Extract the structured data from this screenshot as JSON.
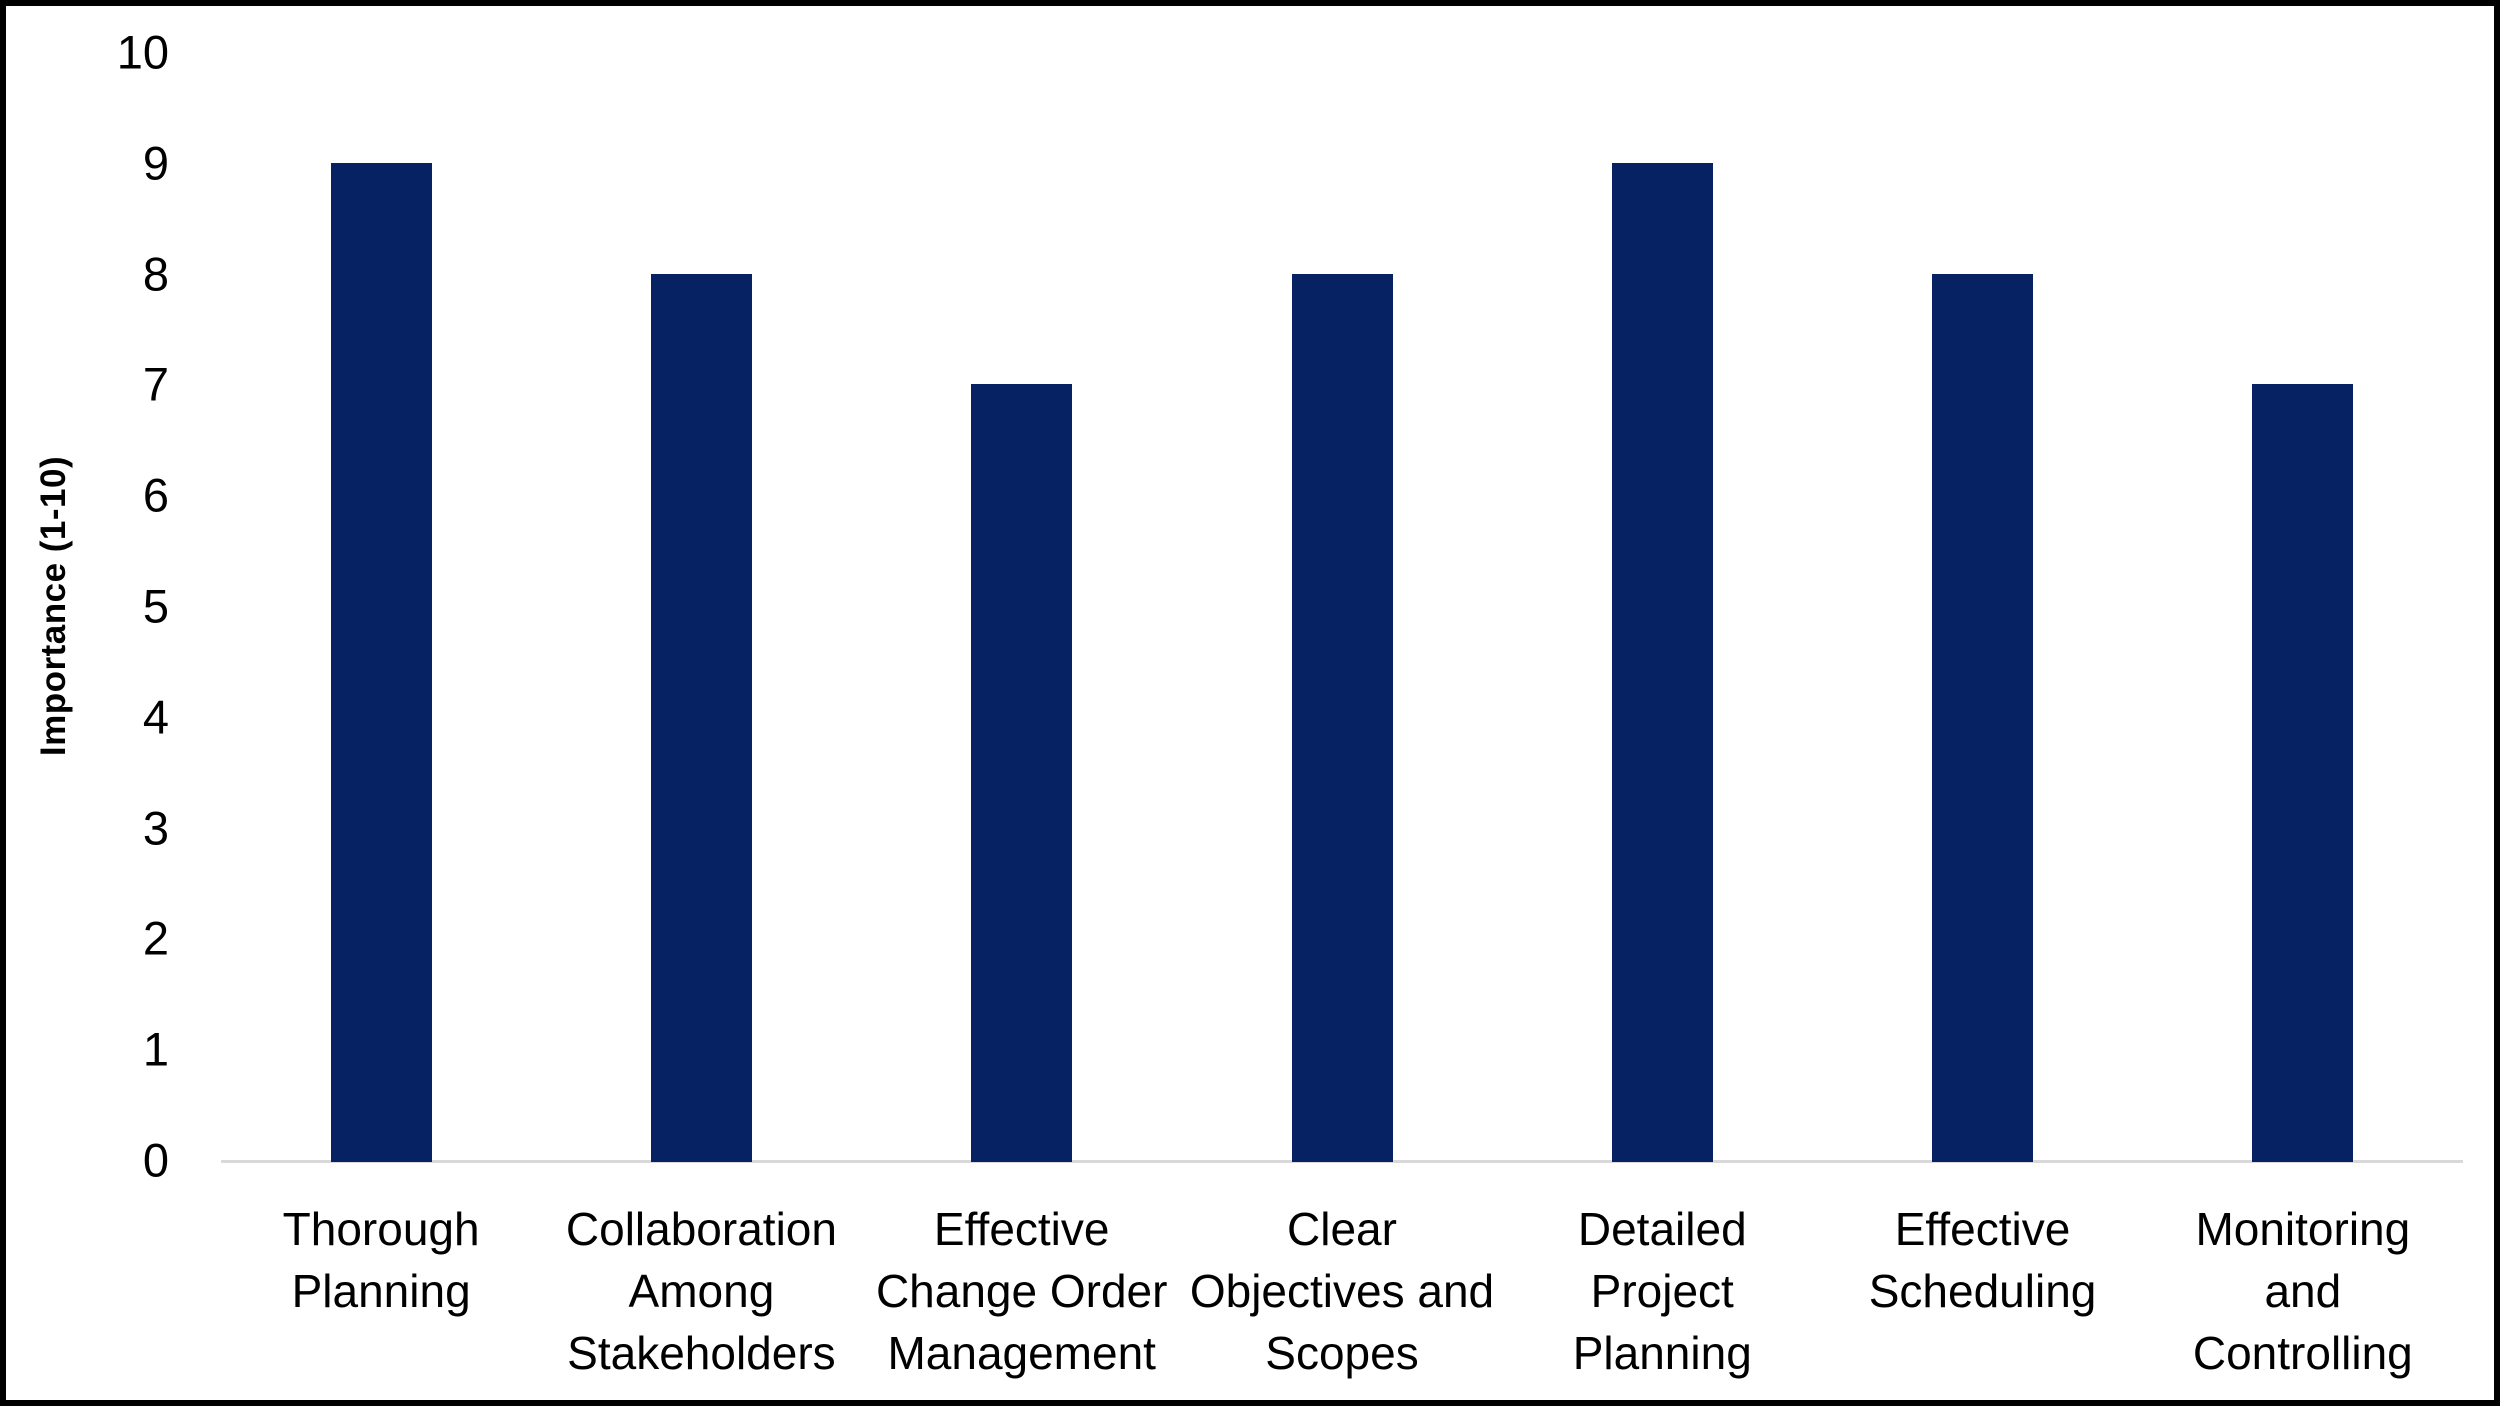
{
  "chart_data": {
    "type": "bar",
    "title": "",
    "ylabel": "Importance (1-10)",
    "xlabel": "",
    "categories": [
      "Thorough Planning",
      "Collaboration Among Stakeholders",
      "Effective Change Order Management",
      "Clear Objectives and Scopes",
      "Detailed Project Planning",
      "Effective Scheduling",
      "Monitoring and Controlling"
    ],
    "category_lines": [
      [
        "Thorough",
        "Planning"
      ],
      [
        "Collaboration",
        "Among",
        "Stakeholders"
      ],
      [
        "Effective",
        "Change Order",
        "Management"
      ],
      [
        "Clear",
        "Objectives and",
        "Scopes"
      ],
      [
        "Detailed",
        "Project",
        "Planning"
      ],
      [
        "Effective",
        "Scheduling"
      ],
      [
        "Monitoring",
        "and",
        "Controlling"
      ]
    ],
    "values": [
      9,
      8,
      7,
      8,
      9,
      8,
      7
    ],
    "ylim": [
      0,
      10
    ],
    "y_ticks": [
      0,
      1,
      2,
      3,
      4,
      5,
      6,
      7,
      8,
      9,
      10
    ],
    "grid": false,
    "legend": false,
    "bar_color": "#062262",
    "axis_line_color": "#D9D9D9",
    "text_color": "#000000",
    "background_color": "#FFFFFF",
    "frame_color": "#000000"
  }
}
